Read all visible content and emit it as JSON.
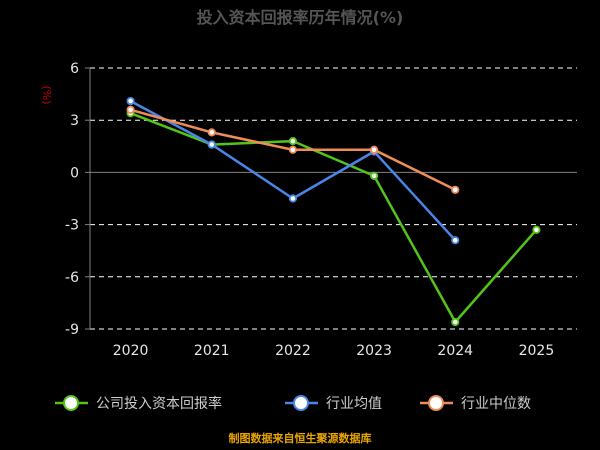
{
  "chart_data": {
    "type": "line",
    "title": "投入资本回报率历年情况(%)",
    "ylabel": "(%)",
    "categories": [
      "2020",
      "2021",
      "2022",
      "2023",
      "2024",
      "2025"
    ],
    "yticks": [
      "6",
      "3",
      "0",
      "-3",
      "-6",
      "-9"
    ],
    "ylim": [
      -9,
      6
    ],
    "grid": true,
    "legend_position": "bottom",
    "series": [
      {
        "name": "公司投入资本回报率",
        "color": "#52c41a",
        "values": [
          3.4,
          1.6,
          1.8,
          -0.2,
          -8.6,
          -3.3
        ]
      },
      {
        "name": "行业均值",
        "color": "#4a86e8",
        "values": [
          4.1,
          1.6,
          -1.5,
          1.2,
          -3.9,
          null
        ]
      },
      {
        "name": "行业中位数",
        "color": "#f08c5a",
        "values": [
          3.6,
          2.3,
          1.3,
          1.3,
          -1.0,
          null
        ]
      }
    ]
  },
  "source": "制图数据来自恒生聚源数据库"
}
